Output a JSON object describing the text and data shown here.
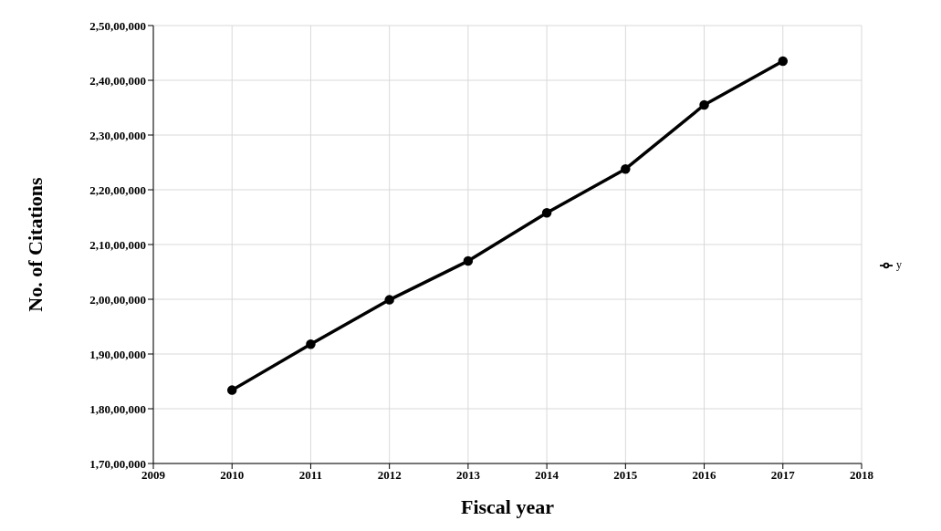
{
  "chart_data": {
    "type": "line",
    "xlabel": "Fiscal year",
    "ylabel": "No. of Citations",
    "x": [
      2010,
      2011,
      2012,
      2013,
      2014,
      2015,
      2016,
      2017
    ],
    "series": [
      {
        "name": "y",
        "color": "#000000",
        "values": [
          18340000,
          19180000,
          19990000,
          20700000,
          21580000,
          22380000,
          23550000,
          24350000
        ]
      }
    ],
    "xlim": [
      2009,
      2018
    ],
    "xticks": [
      2009,
      2010,
      2011,
      2012,
      2013,
      2014,
      2015,
      2016,
      2017,
      2018
    ],
    "ylim": [
      17000000,
      25000000
    ],
    "yticks": [
      {
        "value": 17000000,
        "label": "1,70,00,000"
      },
      {
        "value": 18000000,
        "label": "1,80,00,000"
      },
      {
        "value": 19000000,
        "label": "1,90,00,000"
      },
      {
        "value": 20000000,
        "label": "2,00,00,000"
      },
      {
        "value": 21000000,
        "label": "2,10,00,000"
      },
      {
        "value": 22000000,
        "label": "2,20,00,000"
      },
      {
        "value": 23000000,
        "label": "2,30,00,000"
      },
      {
        "value": 24000000,
        "label": "2,40,00,000"
      },
      {
        "value": 25000000,
        "label": "2,50,00,000"
      }
    ],
    "grid": true,
    "legend": "right",
    "marker": "circle",
    "line_style": "solid"
  }
}
